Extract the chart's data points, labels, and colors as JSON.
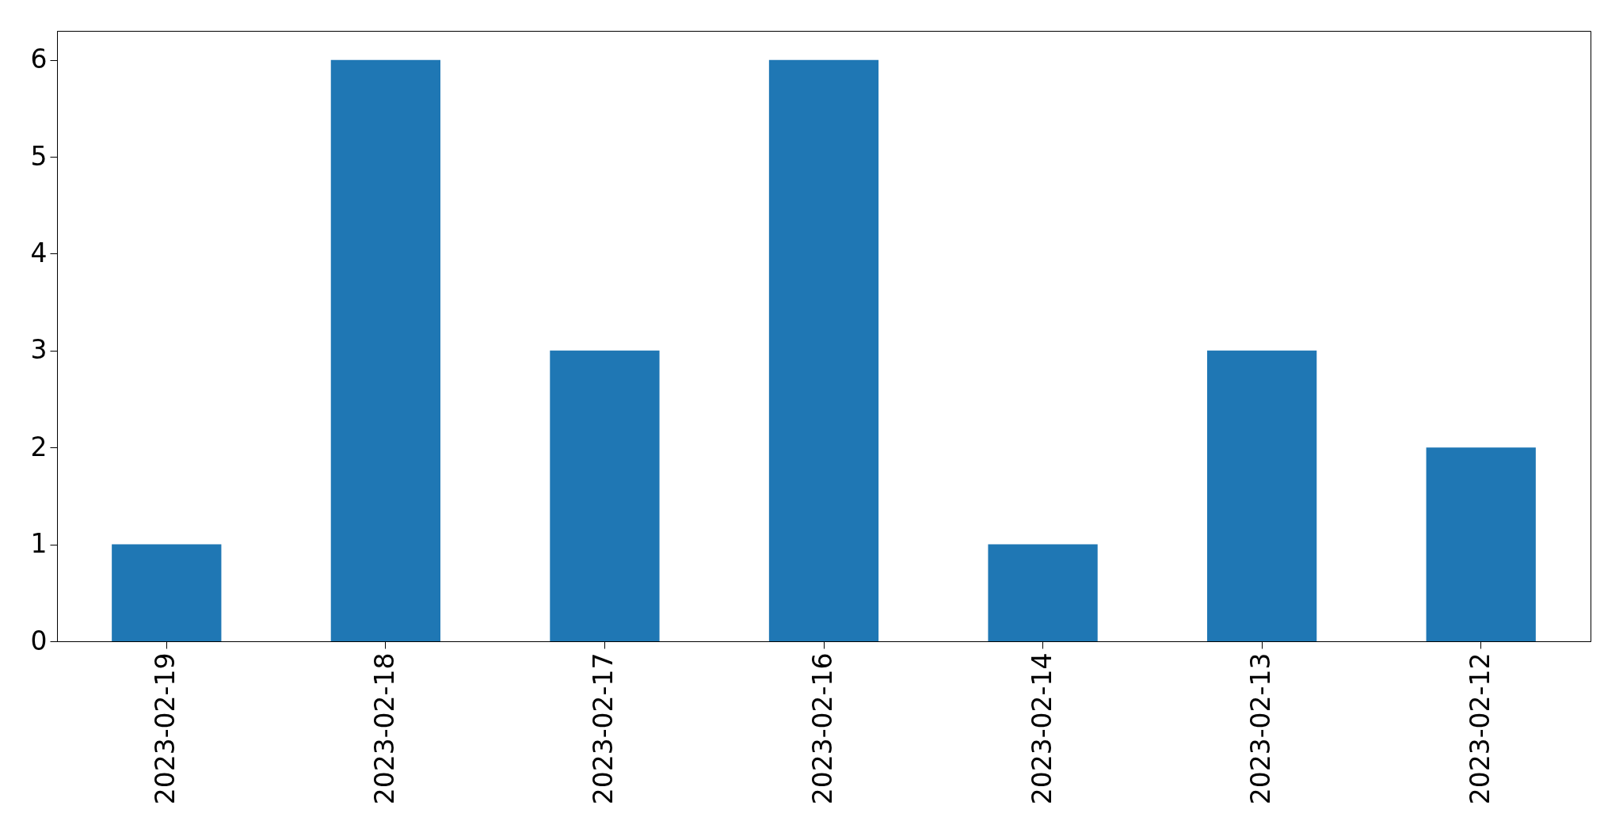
{
  "chart_data": {
    "type": "bar",
    "categories": [
      "2023-02-19",
      "2023-02-18",
      "2023-02-17",
      "2023-02-16",
      "2023-02-14",
      "2023-02-13",
      "2023-02-12"
    ],
    "values": [
      1,
      6,
      3,
      6,
      1,
      3,
      2
    ],
    "color": "#1f77b4",
    "ylim": [
      0,
      6.3
    ],
    "yticks": [
      0,
      1,
      2,
      3,
      4,
      5,
      6
    ],
    "grid": false
  }
}
